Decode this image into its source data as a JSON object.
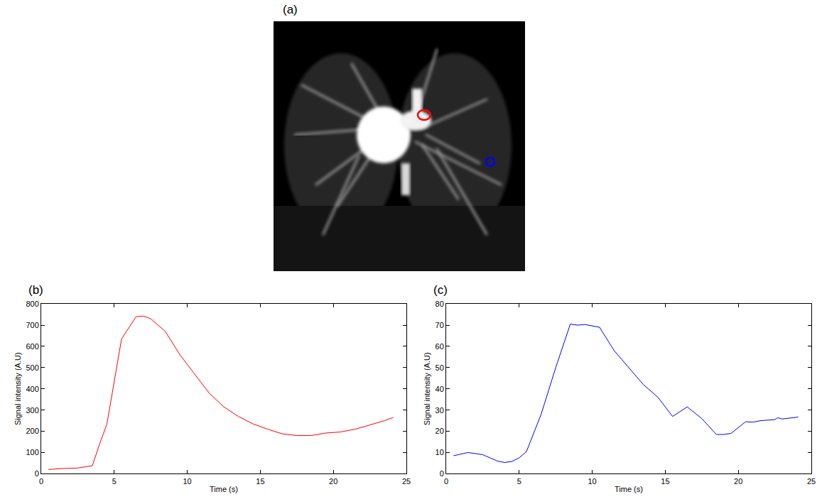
{
  "image_panel": {
    "panel_label": "(a)",
    "colors": [
      "#ff0000",
      "#0000ff"
    ]
  },
  "chart_data": [
    {
      "type": "line",
      "panel_label": "(b)",
      "x_label": "Time (s)",
      "y_label": "Signal intensity (A.U)",
      "x": [
        0.5,
        1.5,
        2.5,
        3.5,
        4.0,
        4.5,
        5.5,
        6.5,
        7.0,
        7.5,
        8.5,
        9.5,
        10.5,
        11.5,
        12.5,
        13.5,
        14.5,
        15.5,
        16.5,
        17.5,
        18.5,
        19.5,
        20.5,
        21.5,
        22.5,
        23.5,
        24.1
      ],
      "values": [
        20,
        25,
        27,
        38,
        140,
        235,
        635,
        740,
        743,
        730,
        670,
        560,
        470,
        380,
        315,
        270,
        235,
        210,
        188,
        180,
        180,
        192,
        197,
        210,
        230,
        250,
        265
      ],
      "color": "#ff0000",
      "xlim": [
        0,
        25
      ],
      "xticks": [
        0,
        5,
        10,
        15,
        20,
        25
      ],
      "ylim": [
        0,
        800
      ],
      "yticks": [
        0,
        100,
        200,
        300,
        400,
        500,
        600,
        700,
        800
      ],
      "grid": false
    },
    {
      "type": "line",
      "panel_label": "(c)",
      "x_label": "Time (s)",
      "y_label": "Signal intensity (A.U)",
      "x": [
        0.5,
        1.5,
        2.5,
        3.5,
        4.0,
        4.5,
        5.0,
        5.5,
        6.5,
        7.5,
        8.5,
        9.0,
        9.5,
        10.5,
        11.5,
        12.5,
        13.5,
        14.5,
        15.5,
        16.5,
        17.5,
        18.5,
        19.0,
        19.5,
        20.5,
        21.0,
        21.5,
        22.5,
        22.7,
        23.0,
        24.1
      ],
      "values": [
        8.5,
        10,
        9,
        6,
        5.3,
        5.8,
        7.5,
        10.5,
        28,
        50,
        70.5,
        70,
        70.3,
        69,
        58,
        50,
        42,
        36,
        27,
        31.5,
        26,
        18.5,
        18.5,
        19,
        24.5,
        24.3,
        25,
        25.5,
        26.4,
        25.8,
        26.7
      ],
      "color": "#0000ff",
      "xlim": [
        0,
        25
      ],
      "xticks": [
        0,
        5,
        10,
        15,
        20,
        25
      ],
      "ylim": [
        0,
        80
      ],
      "yticks": [
        0,
        10,
        20,
        30,
        40,
        50,
        60,
        70,
        80
      ],
      "grid": false
    }
  ]
}
